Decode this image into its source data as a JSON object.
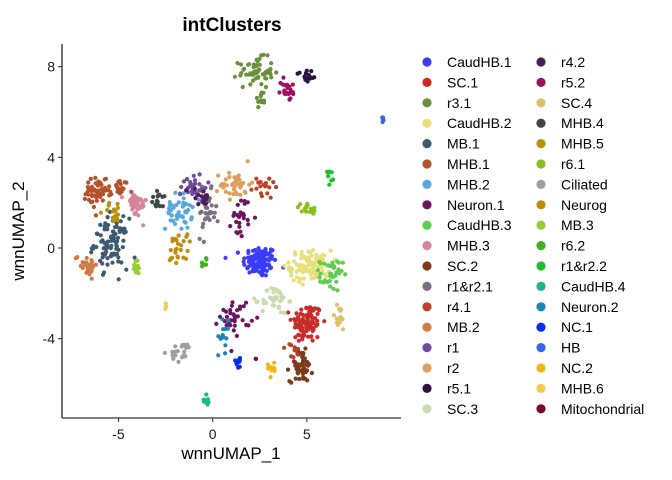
{
  "chart_data": {
    "type": "scatter",
    "title": "intClusters",
    "xlabel": "wnnUMAP_1",
    "ylabel": "wnnUMAP_2",
    "xlim": [
      -8,
      10
    ],
    "ylim": [
      -7.5,
      9
    ],
    "xticks": [
      -5,
      0,
      5
    ],
    "yticks": [
      -4,
      0,
      4,
      8
    ],
    "grid": false,
    "legend_position": "right",
    "legend_columns": 2,
    "series": [
      {
        "name": "CaudHB.1",
        "color": "#3A3AF7",
        "clusters": [
          {
            "x": 2.5,
            "y": -0.6,
            "sx": 0.45,
            "sy": 0.35,
            "n": 110
          }
        ]
      },
      {
        "name": "SC.1",
        "color": "#CA2A2A",
        "clusters": [
          {
            "x": 5.0,
            "y": -3.3,
            "sx": 0.4,
            "sy": 0.45,
            "n": 100
          }
        ]
      },
      {
        "name": "r3.1",
        "color": "#6B8E3C",
        "clusters": [
          {
            "x": 2.3,
            "y": 7.8,
            "sx": 0.45,
            "sy": 0.3,
            "n": 55
          },
          {
            "x": 2.6,
            "y": 6.6,
            "sx": 0.15,
            "sy": 0.5,
            "n": 12
          }
        ]
      },
      {
        "name": "CaudHB.2",
        "color": "#E8DF7A",
        "clusters": [
          {
            "x": 5.2,
            "y": -0.8,
            "sx": 0.55,
            "sy": 0.35,
            "n": 100
          }
        ]
      },
      {
        "name": "MB.1",
        "color": "#3E5A72",
        "clusters": [
          {
            "x": -5.4,
            "y": 0.2,
            "sx": 0.45,
            "sy": 0.55,
            "n": 90
          }
        ]
      },
      {
        "name": "MHB.1",
        "color": "#B4502A",
        "clusters": [
          {
            "x": -6.2,
            "y": 2.4,
            "sx": 0.4,
            "sy": 0.35,
            "n": 45
          },
          {
            "x": -5.0,
            "y": 2.7,
            "sx": 0.4,
            "sy": 0.2,
            "n": 25
          }
        ]
      },
      {
        "name": "MHB.2",
        "color": "#56A8DC",
        "clusters": [
          {
            "x": -1.8,
            "y": 1.6,
            "sx": 0.35,
            "sy": 0.4,
            "n": 45
          }
        ]
      },
      {
        "name": "Neuron.1",
        "color": "#6C1460",
        "clusters": [
          {
            "x": 1.5,
            "y": 1.4,
            "sx": 0.25,
            "sy": 0.45,
            "n": 25
          },
          {
            "x": 1.2,
            "y": -3.0,
            "sx": 0.4,
            "sy": 0.4,
            "n": 35
          }
        ]
      },
      {
        "name": "CaudHB.3",
        "color": "#5CCD4E",
        "clusters": [
          {
            "x": 6.3,
            "y": -1.2,
            "sx": 0.3,
            "sy": 0.35,
            "n": 35
          }
        ]
      },
      {
        "name": "MHB.3",
        "color": "#D4869C",
        "clusters": [
          {
            "x": -4.1,
            "y": 1.9,
            "sx": 0.3,
            "sy": 0.3,
            "n": 35
          }
        ]
      },
      {
        "name": "SC.2",
        "color": "#7A3A1C",
        "clusters": [
          {
            "x": 4.7,
            "y": -5.2,
            "sx": 0.3,
            "sy": 0.35,
            "n": 55
          }
        ]
      },
      {
        "name": "r1&r2.1",
        "color": "#7B6E80",
        "clusters": [
          {
            "x": -0.3,
            "y": 1.5,
            "sx": 0.25,
            "sy": 0.5,
            "n": 35
          }
        ]
      },
      {
        "name": "r4.1",
        "color": "#BD4128",
        "clusters": [
          {
            "x": 2.7,
            "y": 2.7,
            "sx": 0.3,
            "sy": 0.3,
            "n": 18
          },
          {
            "x": 4.3,
            "y": -4.6,
            "sx": 0.2,
            "sy": 0.2,
            "n": 10
          }
        ]
      },
      {
        "name": "MB.2",
        "color": "#D07A48",
        "clusters": [
          {
            "x": -6.7,
            "y": -0.7,
            "sx": 0.3,
            "sy": 0.25,
            "n": 30
          }
        ]
      },
      {
        "name": "r1",
        "color": "#6E4C9B",
        "clusters": [
          {
            "x": -1.0,
            "y": 2.7,
            "sx": 0.35,
            "sy": 0.3,
            "n": 30
          }
        ]
      },
      {
        "name": "r2",
        "color": "#DE9E5E",
        "clusters": [
          {
            "x": 1.2,
            "y": 2.8,
            "sx": 0.4,
            "sy": 0.3,
            "n": 40
          }
        ]
      },
      {
        "name": "r5.1",
        "color": "#2A1240",
        "clusters": [
          {
            "x": 5.0,
            "y": 7.6,
            "sx": 0.3,
            "sy": 0.15,
            "n": 20
          }
        ]
      },
      {
        "name": "SC.3",
        "color": "#C8DCB0",
        "clusters": [
          {
            "x": 3.3,
            "y": -2.3,
            "sx": 0.35,
            "sy": 0.3,
            "n": 40
          }
        ]
      },
      {
        "name": "r4.2",
        "color": "#4E1A58",
        "clusters": [
          {
            "x": -0.7,
            "y": 2.2,
            "sx": 0.3,
            "sy": 0.3,
            "n": 15
          }
        ]
      },
      {
        "name": "r5.2",
        "color": "#A01060",
        "clusters": [
          {
            "x": 4.0,
            "y": 7.0,
            "sx": 0.2,
            "sy": 0.25,
            "n": 22
          }
        ]
      },
      {
        "name": "SC.4",
        "color": "#E0C068",
        "clusters": [
          {
            "x": 6.7,
            "y": -3.1,
            "sx": 0.2,
            "sy": 0.3,
            "n": 18
          }
        ]
      },
      {
        "name": "MHB.4",
        "color": "#3C4844",
        "clusters": [
          {
            "x": -2.8,
            "y": 2.1,
            "sx": 0.25,
            "sy": 0.2,
            "n": 15
          }
        ]
      },
      {
        "name": "MHB.5",
        "color": "#B8900C",
        "clusters": [
          {
            "x": -5.2,
            "y": 1.6,
            "sx": 0.3,
            "sy": 0.25,
            "n": 15
          },
          {
            "x": -1.9,
            "y": -0.3,
            "sx": 0.3,
            "sy": 0.2,
            "n": 10
          }
        ]
      },
      {
        "name": "r6.1",
        "color": "#86C01A",
        "clusters": [
          {
            "x": 5.0,
            "y": 1.7,
            "sx": 0.3,
            "sy": 0.15,
            "n": 15
          }
        ]
      },
      {
        "name": "Ciliated",
        "color": "#9E9E9E",
        "clusters": [
          {
            "x": -1.6,
            "y": -4.6,
            "sx": 0.35,
            "sy": 0.2,
            "n": 20
          }
        ]
      },
      {
        "name": "Neurog",
        "color": "#C08A10",
        "clusters": [
          {
            "x": -1.7,
            "y": 0.2,
            "sx": 0.3,
            "sy": 0.3,
            "n": 15
          }
        ]
      },
      {
        "name": "MB.3",
        "color": "#9ACD32",
        "clusters": [
          {
            "x": -4.1,
            "y": -0.8,
            "sx": 0.2,
            "sy": 0.2,
            "n": 12
          }
        ]
      },
      {
        "name": "r6.2",
        "color": "#40B01C",
        "clusters": [
          {
            "x": -0.4,
            "y": -0.6,
            "sx": 0.1,
            "sy": 0.15,
            "n": 8
          }
        ]
      },
      {
        "name": "r1&r2.2",
        "color": "#1CC02A",
        "clusters": [
          {
            "x": 6.2,
            "y": 3.3,
            "sx": 0.12,
            "sy": 0.25,
            "n": 8
          }
        ]
      },
      {
        "name": "CaudHB.4",
        "color": "#18B88A",
        "clusters": [
          {
            "x": -0.3,
            "y": -6.7,
            "sx": 0.08,
            "sy": 0.15,
            "n": 8
          }
        ]
      },
      {
        "name": "Neuron.2",
        "color": "#1A84B8",
        "clusters": [
          {
            "x": 0.6,
            "y": -3.9,
            "sx": 0.15,
            "sy": 0.35,
            "n": 14
          }
        ]
      },
      {
        "name": "NC.1",
        "color": "#0A2CF0",
        "clusters": [
          {
            "x": 1.3,
            "y": -5.0,
            "sx": 0.15,
            "sy": 0.15,
            "n": 10
          }
        ]
      },
      {
        "name": "HB",
        "color": "#3366E8",
        "clusters": [
          {
            "x": 9.0,
            "y": 5.7,
            "sx": 0.08,
            "sy": 0.06,
            "n": 5
          }
        ]
      },
      {
        "name": "NC.2",
        "color": "#F2B811",
        "clusters": [
          {
            "x": 3.2,
            "y": -5.3,
            "sx": 0.15,
            "sy": 0.2,
            "n": 10
          }
        ]
      },
      {
        "name": "MHB.6",
        "color": "#F7C84A",
        "clusters": [
          {
            "x": -2.5,
            "y": -2.5,
            "sx": 0.08,
            "sy": 0.08,
            "n": 3
          }
        ]
      },
      {
        "name": "Mitochondrial",
        "color": "#7A0A2C",
        "clusters": [
          {
            "x": 2.3,
            "y": -4.9,
            "sx": 0.05,
            "sy": 0.05,
            "n": 2
          }
        ]
      }
    ]
  }
}
